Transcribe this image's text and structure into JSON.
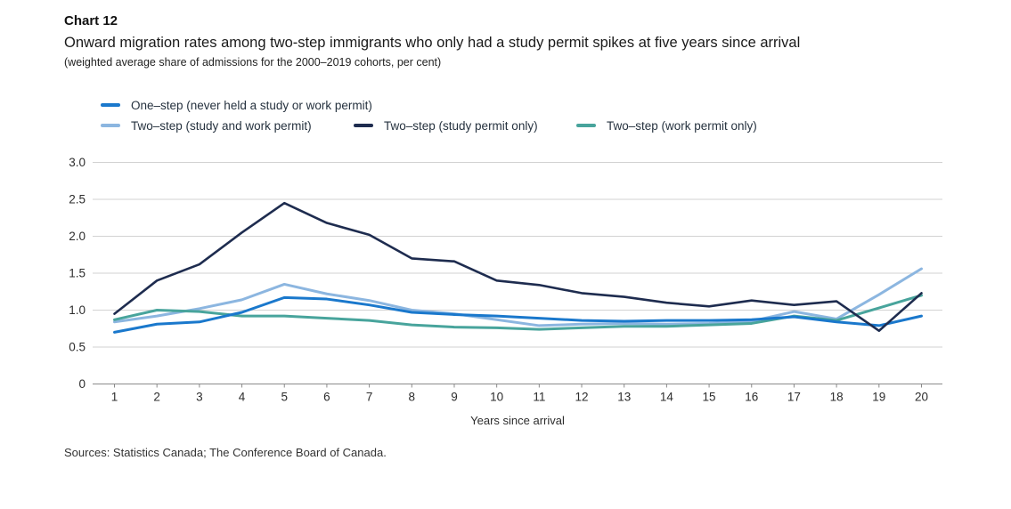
{
  "header": {
    "chart_label": "Chart 12",
    "title": "Onward migration rates among two-step immigrants who only had a study permit spikes at five years since arrival",
    "subtitle": "(weighted average share of admissions for the 2000–2019 cohorts, per cent)"
  },
  "footer": {
    "sources": "Sources: Statistics Canada; The Conference Board of Canada."
  },
  "colors": {
    "grid": "#d2d2d2",
    "axis": "#8a8a8a",
    "tick_text": "#2d2d2d"
  },
  "chart_data": {
    "type": "line",
    "title": "Onward migration rates among two-step immigrants who only had a study permit spikes at five years since arrival",
    "subtitle": "(weighted average share of admissions for the 2000–2019 cohorts, per cent)",
    "x": [
      1,
      2,
      3,
      4,
      5,
      6,
      7,
      8,
      9,
      10,
      11,
      12,
      13,
      14,
      15,
      16,
      17,
      18,
      19,
      20
    ],
    "xlabel": "Years since arrival",
    "ylabel": "",
    "ylim": [
      0,
      3.0
    ],
    "ytick_values": [
      0,
      0.5,
      1.0,
      1.5,
      2.0,
      2.5,
      3.0
    ],
    "ytick_labels": [
      "0",
      "0.5",
      "1.0",
      "1.5",
      "2.0",
      "2.5",
      "3.0"
    ],
    "grid": "horizontal",
    "legend_position": "top-left",
    "series": [
      {
        "name": "One–step (never held a study or work permit)",
        "slug": "one-step",
        "color": "#1a78cc",
        "stroke_width": 3,
        "values": [
          0.7,
          0.81,
          0.84,
          0.97,
          1.17,
          1.15,
          1.07,
          0.97,
          0.94,
          0.92,
          0.89,
          0.86,
          0.85,
          0.86,
          0.86,
          0.87,
          0.91,
          0.84,
          0.79,
          0.92
        ]
      },
      {
        "name": "Two–step (study and work permit)",
        "slug": "two-step-study-and-work",
        "color": "#8cb6e0",
        "stroke_width": 3,
        "values": [
          0.84,
          0.92,
          1.02,
          1.14,
          1.35,
          1.22,
          1.13,
          1.0,
          0.95,
          0.87,
          0.79,
          0.81,
          0.82,
          0.81,
          0.82,
          0.85,
          0.98,
          0.88,
          1.21,
          1.56
        ]
      },
      {
        "name": "Two–step (study permit only)",
        "slug": "two-step-study-only",
        "color": "#1e2c4f",
        "stroke_width": 2.6,
        "values": [
          0.95,
          1.4,
          1.62,
          2.05,
          2.45,
          2.18,
          2.02,
          1.7,
          1.66,
          1.4,
          1.34,
          1.23,
          1.18,
          1.1,
          1.05,
          1.13,
          1.07,
          1.12,
          0.72,
          1.23
        ]
      },
      {
        "name": "Two–step (work permit only)",
        "slug": "two-step-work-only",
        "color": "#48a49c",
        "stroke_width": 3,
        "values": [
          0.87,
          1.0,
          0.98,
          0.92,
          0.92,
          0.89,
          0.86,
          0.8,
          0.77,
          0.76,
          0.74,
          0.76,
          0.78,
          0.78,
          0.8,
          0.82,
          0.92,
          0.86,
          1.03,
          1.2
        ]
      }
    ],
    "draw_order": [
      1,
      3,
      0,
      2
    ]
  }
}
